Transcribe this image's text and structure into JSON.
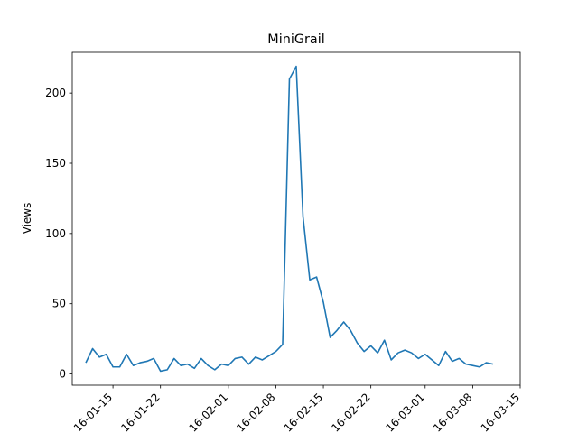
{
  "chart_data": {
    "type": "line",
    "title": "MiniGrail",
    "xlabel": "",
    "ylabel": "Views",
    "x_ticks": [
      "2016-01-15",
      "2016-01-22",
      "2016-02-01",
      "2016-02-08",
      "2016-02-15",
      "2016-02-22",
      "2016-03-01",
      "2016-03-08",
      "2016-03-15"
    ],
    "x_tick_display": [
      "16-01-15",
      "16-01-22",
      "16-02-01",
      "16-02-08",
      "16-02-15",
      "16-02-22",
      "16-03-01",
      "16-03-08",
      "16-03-15"
    ],
    "xlim": [
      "2016-01-09",
      "2016-03-15"
    ],
    "ylim": [
      -8,
      229
    ],
    "y_ticks": [
      0,
      50,
      100,
      150,
      200
    ],
    "grid": false,
    "line_color": "#1f77b4",
    "series": [
      {
        "x": [
          "2016-01-11",
          "2016-01-12",
          "2016-01-13",
          "2016-01-14",
          "2016-01-15",
          "2016-01-16",
          "2016-01-17",
          "2016-01-18",
          "2016-01-19",
          "2016-01-20",
          "2016-01-21",
          "2016-01-22",
          "2016-01-23",
          "2016-01-24",
          "2016-01-25",
          "2016-01-26",
          "2016-01-27",
          "2016-01-28",
          "2016-01-29",
          "2016-01-30",
          "2016-01-31",
          "2016-02-01",
          "2016-02-02",
          "2016-02-03",
          "2016-02-04",
          "2016-02-05",
          "2016-02-06",
          "2016-02-07",
          "2016-02-08",
          "2016-02-09",
          "2016-02-10",
          "2016-02-11",
          "2016-02-12",
          "2016-02-13",
          "2016-02-14",
          "2016-02-15",
          "2016-02-16",
          "2016-02-17",
          "2016-02-18",
          "2016-02-19",
          "2016-02-20",
          "2016-02-21",
          "2016-02-22",
          "2016-02-23",
          "2016-02-24",
          "2016-02-25",
          "2016-02-26",
          "2016-02-27",
          "2016-02-28",
          "2016-02-29",
          "2016-03-01",
          "2016-03-02",
          "2016-03-03",
          "2016-03-04",
          "2016-03-05",
          "2016-03-06",
          "2016-03-07",
          "2016-03-08",
          "2016-03-09",
          "2016-03-10",
          "2016-03-11",
          "2016-03-12",
          "2016-03-13"
        ],
        "values": [
          8,
          18,
          12,
          14,
          5,
          5,
          14,
          6,
          8,
          9,
          11,
          2,
          3,
          11,
          6,
          7,
          4,
          11,
          6,
          3,
          7,
          6,
          11,
          12,
          7,
          12,
          10,
          13,
          16,
          21,
          210,
          219,
          112,
          67,
          69,
          51,
          26,
          31,
          37,
          31,
          22,
          16,
          20,
          15,
          24,
          10,
          15,
          17,
          15,
          11,
          14,
          10,
          6,
          16,
          9,
          11,
          7,
          6,
          5,
          8,
          7,
          null,
          null
        ]
      }
    ]
  }
}
